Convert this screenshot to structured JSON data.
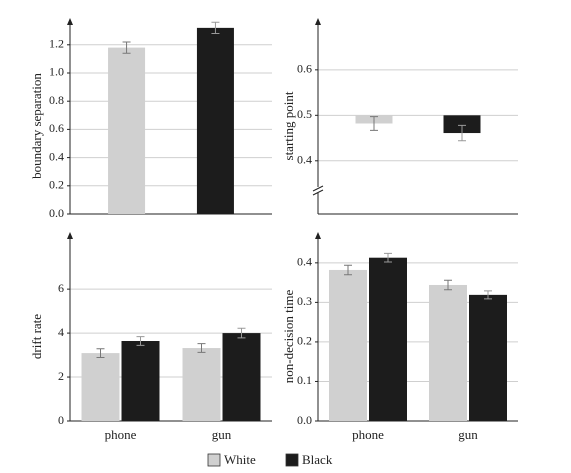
{
  "legend": [
    {
      "name": "White",
      "color": "#d0d0d0"
    },
    {
      "name": "Black",
      "color": "#1c1c1c"
    }
  ],
  "chart_data": [
    {
      "type": "bar",
      "ylabel": "boundary separation",
      "ylim": [
        0,
        1.39
      ],
      "yticks": [
        {
          "value": 0,
          "label": "0.0"
        },
        0.2,
        0.4,
        0.6,
        0.8,
        {
          "value": 1,
          "label": "1.0"
        },
        1.2
      ],
      "grid": true,
      "series": [
        {
          "values": [
            1.18
          ],
          "errors": [
            0.04
          ]
        },
        {
          "values": [
            1.32
          ],
          "errors": [
            0.04
          ]
        }
      ]
    },
    {
      "type": "bar",
      "ylabel": "starting point",
      "ylim": [
        0.283,
        0.714
      ],
      "yticks": [
        0.4,
        0.5,
        0.6
      ],
      "grid": true,
      "bar_base": 0.5,
      "axis_break": true,
      "series": [
        {
          "values": [
            0.482
          ],
          "errors": [
            0.015
          ]
        },
        {
          "values": [
            0.461
          ],
          "errors": [
            0.017
          ]
        }
      ]
    },
    {
      "type": "bar",
      "ylabel": "drift rate",
      "categories": [
        "phone",
        "gun"
      ],
      "ylim": [
        0,
        8.6
      ],
      "yticks": [
        0,
        2,
        4,
        6
      ],
      "grid": true,
      "series": [
        {
          "values": [
            3.09,
            3.32
          ],
          "errors": [
            0.2,
            0.2
          ]
        },
        {
          "values": [
            3.64,
            4.0
          ],
          "errors": [
            0.2,
            0.22
          ]
        }
      ]
    },
    {
      "type": "bar",
      "ylabel": "non-decision time",
      "categories": [
        "phone",
        "gun"
      ],
      "ylim": [
        0,
        0.478
      ],
      "yticks": [
        {
          "value": 0,
          "label": "0.0"
        },
        0.1,
        0.2,
        0.3,
        0.4
      ],
      "grid": true,
      "series": [
        {
          "values": [
            0.382,
            0.344
          ],
          "errors": [
            0.012,
            0.012
          ]
        },
        {
          "values": [
            0.413,
            0.319
          ],
          "errors": [
            0.011,
            0.01
          ]
        }
      ]
    }
  ]
}
